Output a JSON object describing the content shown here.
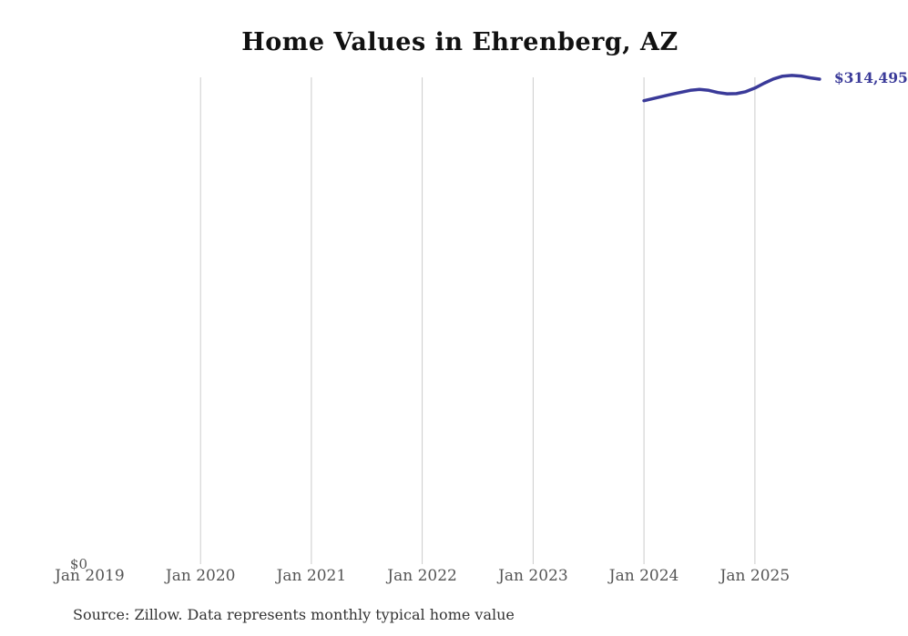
{
  "chart_data": {
    "type": "line",
    "title": "Home Values in Ehrenberg, AZ",
    "source_note": "Source: Zillow. Data represents monthly typical home value",
    "line_color": "#3a3a99",
    "gridline_color": "#cccccc",
    "axis_label_color": "#555555",
    "end_label": "$314,495",
    "grid": "vertical-only",
    "legend": "none",
    "y_axis": {
      "min_label": "$0",
      "min": 0
    },
    "x_axis": {
      "tick_labels": [
        "Jan 2019",
        "Jan 2020",
        "Jan 2021",
        "Jan 2022",
        "Jan 2023",
        "Jan 2024",
        "Jan 2025"
      ],
      "gridlines": [
        "Jan 2020",
        "Jan 2021",
        "Jan 2022",
        "Jan 2023",
        "Jan 2024",
        "Jan 2025"
      ]
    },
    "series": [
      {
        "name": "Monthly typical home value",
        "months": [
          "2024-01",
          "2024-02",
          "2024-03",
          "2024-04",
          "2024-05",
          "2024-06",
          "2024-07",
          "2024-08",
          "2024-09",
          "2024-10",
          "2024-11",
          "2024-12",
          "2025-01",
          "2025-02",
          "2025-03",
          "2025-04",
          "2025-05",
          "2025-06",
          "2025-07",
          "2025-08"
        ],
        "values": [
          300500,
          301900,
          303300,
          304700,
          306000,
          307200,
          307800,
          307200,
          305800,
          305000,
          305100,
          306300,
          308700,
          311800,
          314600,
          316400,
          316900,
          316500,
          315300,
          314495
        ]
      }
    ]
  }
}
